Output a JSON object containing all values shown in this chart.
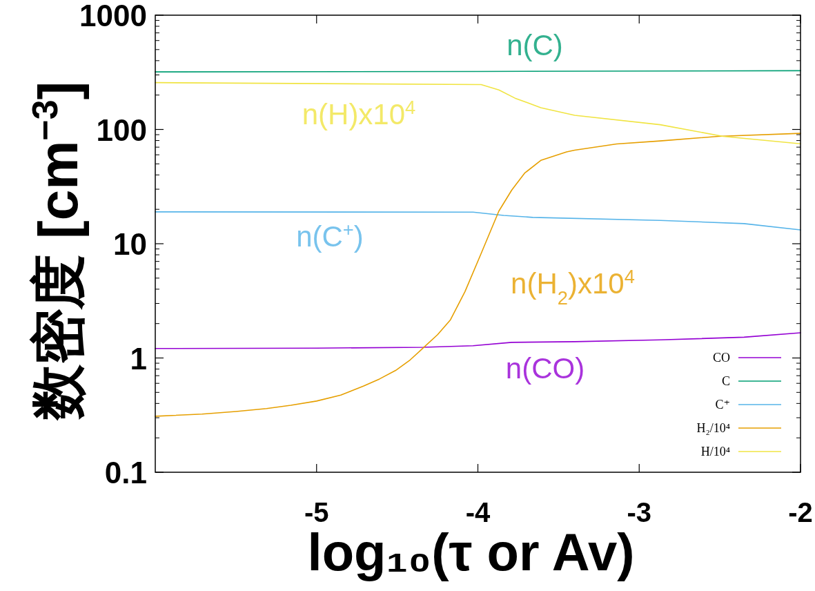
{
  "chart_data": {
    "type": "line",
    "xlabel": "log₁₀(τ  or Av)",
    "ylabel": "数密度 [cm$^{−3}$]",
    "log": "y",
    "xlim": [
      -6,
      -2
    ],
    "xticks": [
      -5,
      -4,
      -3,
      -2
    ],
    "ylim": [
      0.1,
      1000
    ],
    "yticks": [
      0.1,
      1,
      10,
      100,
      1000
    ],
    "grid": false,
    "legend": "bottom right",
    "marker": "none",
    "line_style": "solid",
    "series": [
      {
        "name": "CO",
        "color": "#9400d3",
        "x": [
          -6,
          -5,
          -4.34,
          -4.03,
          -3.79,
          -3.4,
          -2.87,
          -2.35,
          -2
        ],
        "values": [
          1.21,
          1.22,
          1.24,
          1.28,
          1.37,
          1.39,
          1.44,
          1.52,
          1.66
        ]
      },
      {
        "name": "C",
        "color": "#009e73",
        "x": [
          -6,
          -4,
          -2
        ],
        "values": [
          319,
          322,
          327
        ]
      },
      {
        "name": "C⁺",
        "color": "#56b4e9",
        "x": [
          -6,
          -4.03,
          -3.84,
          -3.66,
          -2.87,
          -2.35,
          -2
        ],
        "values": [
          19.0,
          18.9,
          17.7,
          17.0,
          16.0,
          15.0,
          13.2
        ]
      },
      {
        "name": "H₂/10⁴",
        "color": "#e69f00",
        "x": [
          -6,
          -5.71,
          -5.5,
          -5.31,
          -5.16,
          -5.0,
          -4.85,
          -4.71,
          -4.61,
          -4.51,
          -4.42,
          -4.34,
          -4.25,
          -4.17,
          -4.08,
          -3.98,
          -3.87,
          -3.79,
          -3.71,
          -3.61,
          -3.45,
          -3.4,
          -3.14,
          -2.87,
          -2.51,
          -2
        ],
        "values": [
          0.309,
          0.323,
          0.34,
          0.361,
          0.386,
          0.42,
          0.474,
          0.567,
          0.655,
          0.778,
          0.962,
          1.22,
          1.6,
          2.16,
          3.81,
          8.2,
          19.3,
          29.5,
          41.5,
          53.6,
          63.7,
          65.8,
          74.7,
          79.3,
          87,
          92.5
        ]
      },
      {
        "name": "H/10⁴",
        "color": "#f0e442",
        "x": [
          -6,
          -3.98,
          -3.87,
          -3.77,
          -3.61,
          -3.4,
          -2.87,
          -2.48,
          -2
        ],
        "values": [
          257,
          247,
          222,
          188,
          155,
          133,
          110,
          87,
          75
        ]
      }
    ],
    "annotations": [
      "n(CO)",
      "n(C)",
      "n(C$^{+}$)",
      "n(H$_{2}$)x10$^{4}$",
      "n(H)x10$^{4}$"
    ]
  }
}
